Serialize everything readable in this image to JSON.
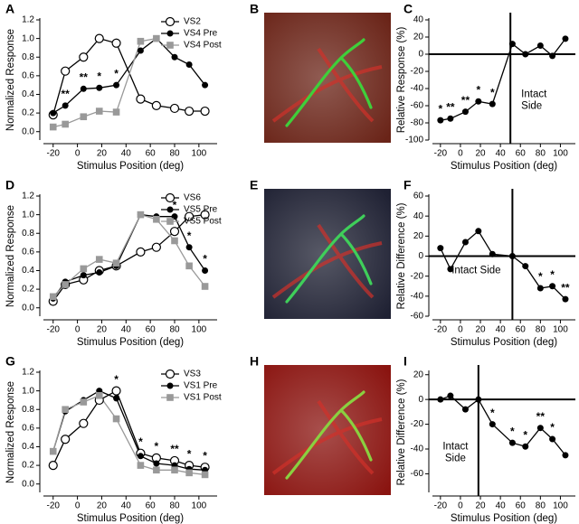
{
  "chart_data": [
    {
      "type": "line",
      "panel": "A",
      "xlabel": "Stimulus Position (deg)",
      "ylabel": "Normalized Response",
      "x": [
        -20,
        -10,
        5,
        18,
        32,
        52,
        65,
        80,
        92,
        105
      ],
      "xlim": [
        -28,
        115
      ],
      "xticks": [
        -20,
        0,
        20,
        40,
        60,
        80,
        100
      ],
      "ylim": [
        -0.09,
        1.2
      ],
      "yticks": [
        {
          "value": 0,
          "label": "0.0"
        },
        0.2,
        0.4,
        0.6,
        0.8,
        {
          "value": 1,
          "label": "1.0"
        },
        1.2
      ],
      "legend": "upper right",
      "series": [
        {
          "name": "VS2",
          "color": "#000000",
          "marker": "open-circle",
          "values": [
            0.18,
            0.65,
            0.8,
            1.0,
            0.95,
            0.35,
            0.28,
            0.25,
            0.22,
            0.22
          ]
        },
        {
          "name": "VS4 Pre",
          "color": "#000000",
          "marker": "filled-circle",
          "values": [
            0.2,
            0.28,
            0.46,
            0.47,
            0.5,
            0.87,
            1.0,
            0.8,
            0.72,
            0.5
          ]
        },
        {
          "name": "VS4 Post",
          "color": "#999999",
          "marker": "square",
          "values": [
            0.05,
            0.08,
            0.16,
            0.22,
            0.21,
            0.97,
            1.0,
            null,
            null,
            null
          ]
        }
      ],
      "significance": [
        null,
        "**",
        "**",
        "*",
        "*",
        null,
        null,
        null,
        null,
        null
      ],
      "significance_series": 1
    },
    {
      "type": "image",
      "panel": "B",
      "background": "#6a2418",
      "stain": "#3fcf3a"
    },
    {
      "type": "line",
      "panel": "C",
      "xlabel": "Stimulus Position (deg)",
      "ylabel": "Relative Response (%)",
      "x": [
        -20,
        -10,
        5,
        18,
        32,
        52,
        65,
        80,
        92,
        105
      ],
      "xlim": [
        -28,
        115
      ],
      "xticks": [
        -20,
        0,
        20,
        40,
        60,
        80,
        100
      ],
      "ylim": [
        -100,
        40
      ],
      "yticks": [
        -100,
        -80,
        -60,
        -40,
        -20,
        0,
        20,
        40
      ],
      "reference_lines": {
        "x": 50,
        "y": 0
      },
      "region_label": [
        "Intact",
        "Side"
      ],
      "region_side": "right",
      "series": [
        {
          "color": "#000000",
          "marker": "filled-circle",
          "values": [
            -77,
            -75,
            -67,
            -55,
            -58,
            12,
            0,
            10,
            -2,
            18
          ]
        }
      ],
      "significance": [
        "*",
        "**",
        "**",
        "*",
        "*",
        null,
        null,
        null,
        null,
        null
      ]
    },
    {
      "type": "line",
      "panel": "D",
      "xlabel": "Stimulus Position (deg)",
      "ylabel": "Normalized Response",
      "x": [
        -20,
        -10,
        5,
        18,
        32,
        52,
        65,
        80,
        92,
        105
      ],
      "xlim": [
        -28,
        115
      ],
      "xticks": [
        -20,
        0,
        20,
        40,
        60,
        80,
        100
      ],
      "ylim": [
        -0.09,
        1.2
      ],
      "yticks": [
        {
          "value": 0,
          "label": "0.0"
        },
        0.2,
        0.4,
        0.6,
        0.8,
        {
          "value": 1,
          "label": "1.0"
        },
        1.2
      ],
      "legend": "upper right",
      "series": [
        {
          "name": "VS6",
          "color": "#000000",
          "marker": "open-circle",
          "values": [
            0.07,
            0.25,
            0.3,
            0.4,
            0.45,
            0.6,
            0.65,
            0.82,
            0.98,
            1.0
          ]
        },
        {
          "name": "VS5 Pre",
          "color": "#000000",
          "marker": "filled-circle",
          "values": [
            0.1,
            0.28,
            0.35,
            0.38,
            0.45,
            1.0,
            0.98,
            0.98,
            0.65,
            0.4
          ]
        },
        {
          "name": "VS5 Post",
          "color": "#999999",
          "marker": "square",
          "values": [
            0.12,
            0.25,
            0.42,
            0.52,
            0.48,
            1.0,
            0.95,
            0.72,
            0.45,
            0.23
          ]
        }
      ],
      "significance": [
        null,
        null,
        null,
        null,
        null,
        null,
        null,
        "*",
        "*",
        "*"
      ],
      "significance_series": 1
    },
    {
      "type": "image",
      "panel": "E",
      "background": "#1f2133",
      "stain": "#3fcf5a"
    },
    {
      "type": "line",
      "panel": "F",
      "xlabel": "Stimulus Position (deg)",
      "ylabel": "Relative Difference (%)",
      "x": [
        -20,
        -10,
        5,
        18,
        32,
        52,
        65,
        80,
        92,
        105
      ],
      "xlim": [
        -28,
        115
      ],
      "xticks": [
        -20,
        0,
        20,
        40,
        60,
        80,
        100
      ],
      "ylim": [
        -60,
        60
      ],
      "yticks": [
        -60,
        -40,
        -20,
        0,
        20,
        40,
        60
      ],
      "reference_lines": {
        "x": 52,
        "y": 0
      },
      "region_label": [
        "Intact Side"
      ],
      "region_side": "left",
      "series": [
        {
          "color": "#000000",
          "marker": "filled-circle",
          "values": [
            8,
            -13,
            14,
            25,
            2,
            0,
            -10,
            -32,
            -30,
            -43
          ]
        }
      ],
      "significance": [
        null,
        null,
        null,
        null,
        null,
        null,
        null,
        "*",
        "*",
        "**"
      ]
    },
    {
      "type": "line",
      "panel": "G",
      "xlabel": "Stimulus Position (deg)",
      "ylabel": "Normalized Response",
      "x": [
        -20,
        -10,
        5,
        18,
        32,
        52,
        65,
        80,
        92,
        105
      ],
      "xlim": [
        -28,
        115
      ],
      "xticks": [
        -20,
        0,
        20,
        40,
        60,
        80,
        100
      ],
      "ylim": [
        -0.09,
        1.2
      ],
      "yticks": [
        {
          "value": 0,
          "label": "0.0"
        },
        0.2,
        0.4,
        0.6,
        0.8,
        {
          "value": 1,
          "label": "1.0"
        },
        1.2
      ],
      "legend": "upper right",
      "series": [
        {
          "name": "VS3",
          "color": "#000000",
          "marker": "open-circle",
          "values": [
            0.2,
            0.48,
            0.65,
            0.9,
            1.0,
            0.33,
            0.28,
            0.25,
            0.2,
            0.18
          ]
        },
        {
          "name": "VS1 Pre",
          "color": "#000000",
          "marker": "filled-circle",
          "values": [
            0.35,
            0.78,
            0.9,
            1.0,
            0.92,
            0.3,
            0.22,
            0.2,
            0.16,
            0.15
          ]
        },
        {
          "name": "VS1 Post",
          "color": "#999999",
          "marker": "square",
          "values": [
            0.35,
            0.8,
            0.88,
            0.95,
            0.7,
            0.2,
            0.15,
            0.15,
            0.12,
            0.1
          ]
        }
      ],
      "significance": [
        null,
        null,
        null,
        null,
        "*",
        "*",
        "*",
        "**",
        "*",
        "*"
      ]
    },
    {
      "type": "image",
      "panel": "H",
      "background": "#8a1410",
      "stain": "#8ad040"
    },
    {
      "type": "line",
      "panel": "I",
      "xlabel": "Stimulus Position (deg)",
      "ylabel": "Relative Difference (%)",
      "x": [
        -20,
        -10,
        5,
        18,
        32,
        52,
        65,
        80,
        92,
        105
      ],
      "xlim": [
        -28,
        115
      ],
      "xticks": [
        -20,
        0,
        20,
        40,
        60,
        80,
        100
      ],
      "ylim": [
        -75,
        22
      ],
      "yticks": [
        -60,
        -40,
        -20,
        0,
        20
      ],
      "reference_lines": {
        "x": 18,
        "y": 0
      },
      "region_label": [
        "Intact",
        "Side"
      ],
      "region_side": "left",
      "series": [
        {
          "color": "#000000",
          "marker": "filled-circle",
          "values": [
            0,
            3,
            -8,
            0,
            -20,
            -35,
            -38,
            -23,
            -32,
            -45
          ]
        }
      ],
      "significance": [
        null,
        null,
        null,
        null,
        "*",
        "*",
        "*",
        "**",
        "*",
        null
      ]
    }
  ]
}
